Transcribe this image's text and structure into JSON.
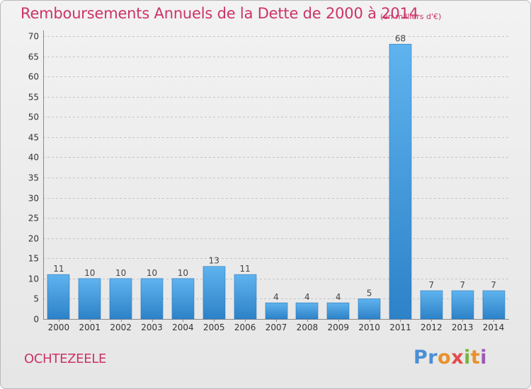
{
  "header": {
    "title": "Remboursements Annuels de la Dette de 2000 à 2014",
    "unit": "(en milliers d'€)"
  },
  "footer": {
    "commune": "OCHTEZEELE",
    "logo_text": "Proxiti"
  },
  "colors": {
    "title": "#cc3366",
    "bar_light": "#5aaeea",
    "bar_dark": "#2f86cc",
    "grid": "#c8c8c8"
  },
  "chart_data": {
    "type": "bar",
    "title": "Remboursements Annuels de la Dette de 2000 à 2014",
    "xlabel": "",
    "ylabel": "",
    "categories": [
      "2000",
      "2001",
      "2002",
      "2003",
      "2004",
      "2005",
      "2006",
      "2007",
      "2008",
      "2009",
      "2010",
      "2011",
      "2012",
      "2013",
      "2014"
    ],
    "values": [
      11,
      10,
      10,
      10,
      10,
      13,
      11,
      4,
      4,
      4,
      5,
      68,
      7,
      7,
      7
    ],
    "ylim": [
      0,
      70
    ],
    "yticks": [
      0,
      5,
      10,
      15,
      20,
      25,
      30,
      35,
      40,
      45,
      50,
      55,
      60,
      65,
      70
    ],
    "grid": "horizontal dashed",
    "legend": "none"
  }
}
